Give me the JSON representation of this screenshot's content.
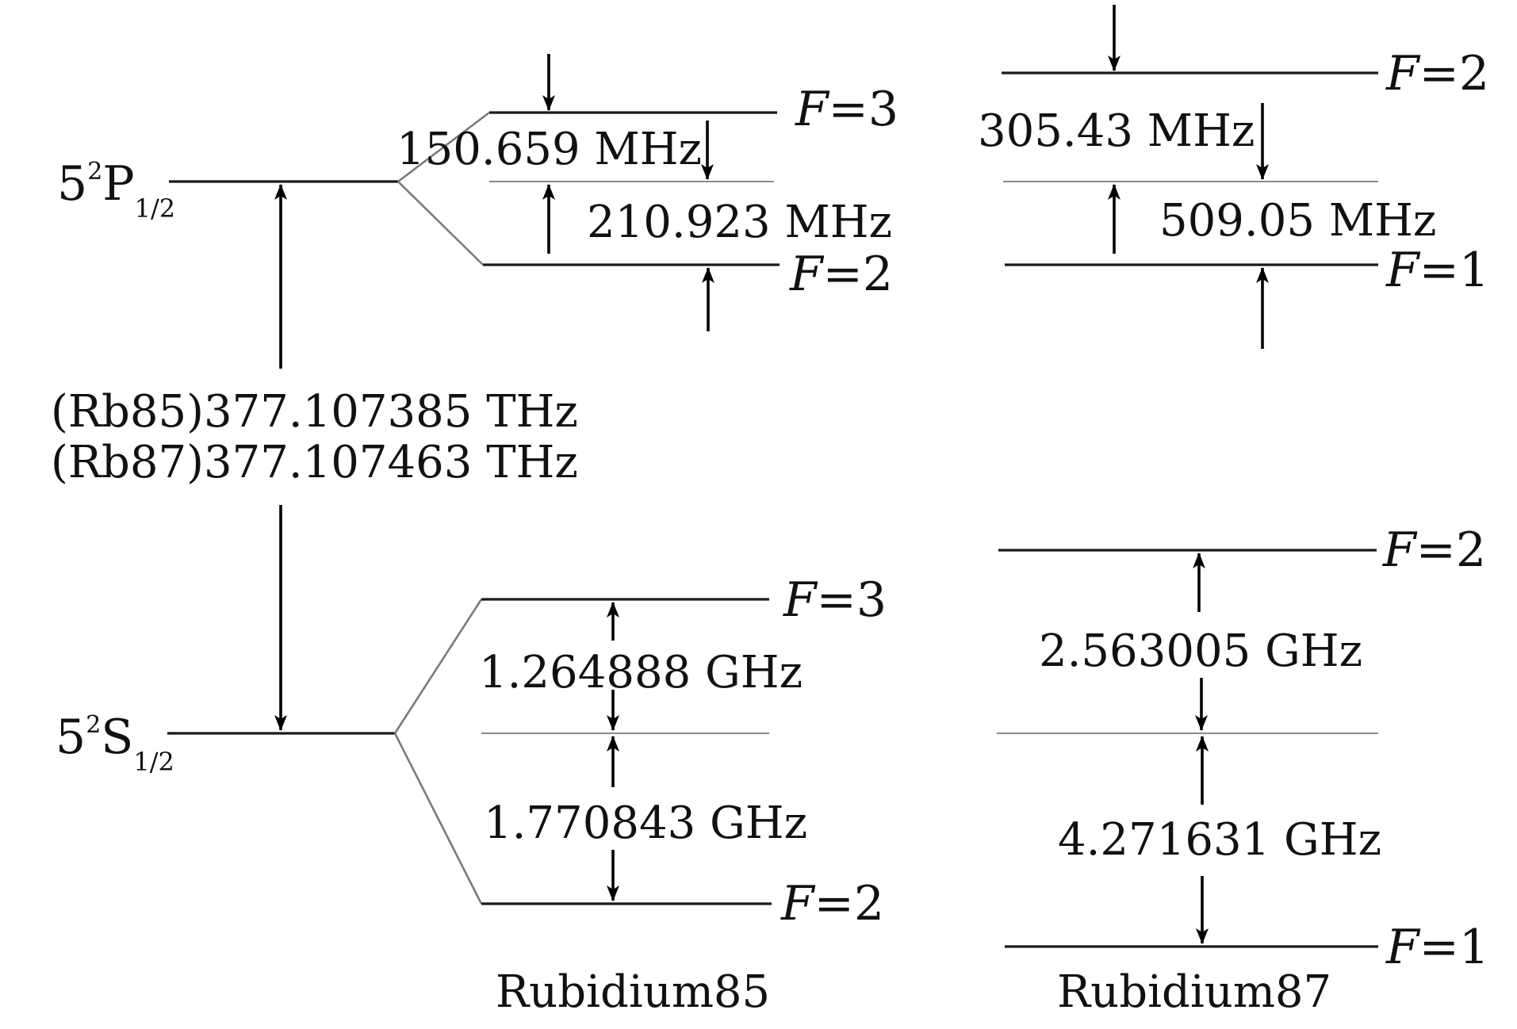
{
  "states": {
    "p": {
      "n": "5",
      "sup": "2",
      "letter": "P",
      "sub": "1/2"
    },
    "s": {
      "n": "5",
      "sup": "2",
      "letter": "S",
      "sub": "1/2"
    }
  },
  "transition": {
    "rb85": "(Rb85)377.107385 THz",
    "rb87": "(Rb87)377.107463 THz"
  },
  "rb85": {
    "name": "Rubidium85",
    "p_upper": {
      "F": "F",
      "eq": "=3"
    },
    "p_lower": {
      "F": "F",
      "eq": "=2"
    },
    "p_split_upper": "150.659 MHz",
    "p_split_lower": "210.923 MHz",
    "s_upper": {
      "F": "F",
      "eq": "=3"
    },
    "s_lower": {
      "F": "F",
      "eq": "=2"
    },
    "s_split_upper": "1.264888 GHz",
    "s_split_lower": "1.770843 GHz"
  },
  "rb87": {
    "name": "Rubidium87",
    "p_upper": {
      "F": "F",
      "eq": "=2"
    },
    "p_lower": {
      "F": "F",
      "eq": "=1"
    },
    "p_split_upper": "305.43 MHz",
    "p_split_lower": "509.05 MHz",
    "s_upper": {
      "F": "F",
      "eq": "=2"
    },
    "s_lower": {
      "F": "F",
      "eq": "=1"
    },
    "s_split_upper": "2.563005 GHz",
    "s_split_lower": "4.271631 GHz"
  }
}
